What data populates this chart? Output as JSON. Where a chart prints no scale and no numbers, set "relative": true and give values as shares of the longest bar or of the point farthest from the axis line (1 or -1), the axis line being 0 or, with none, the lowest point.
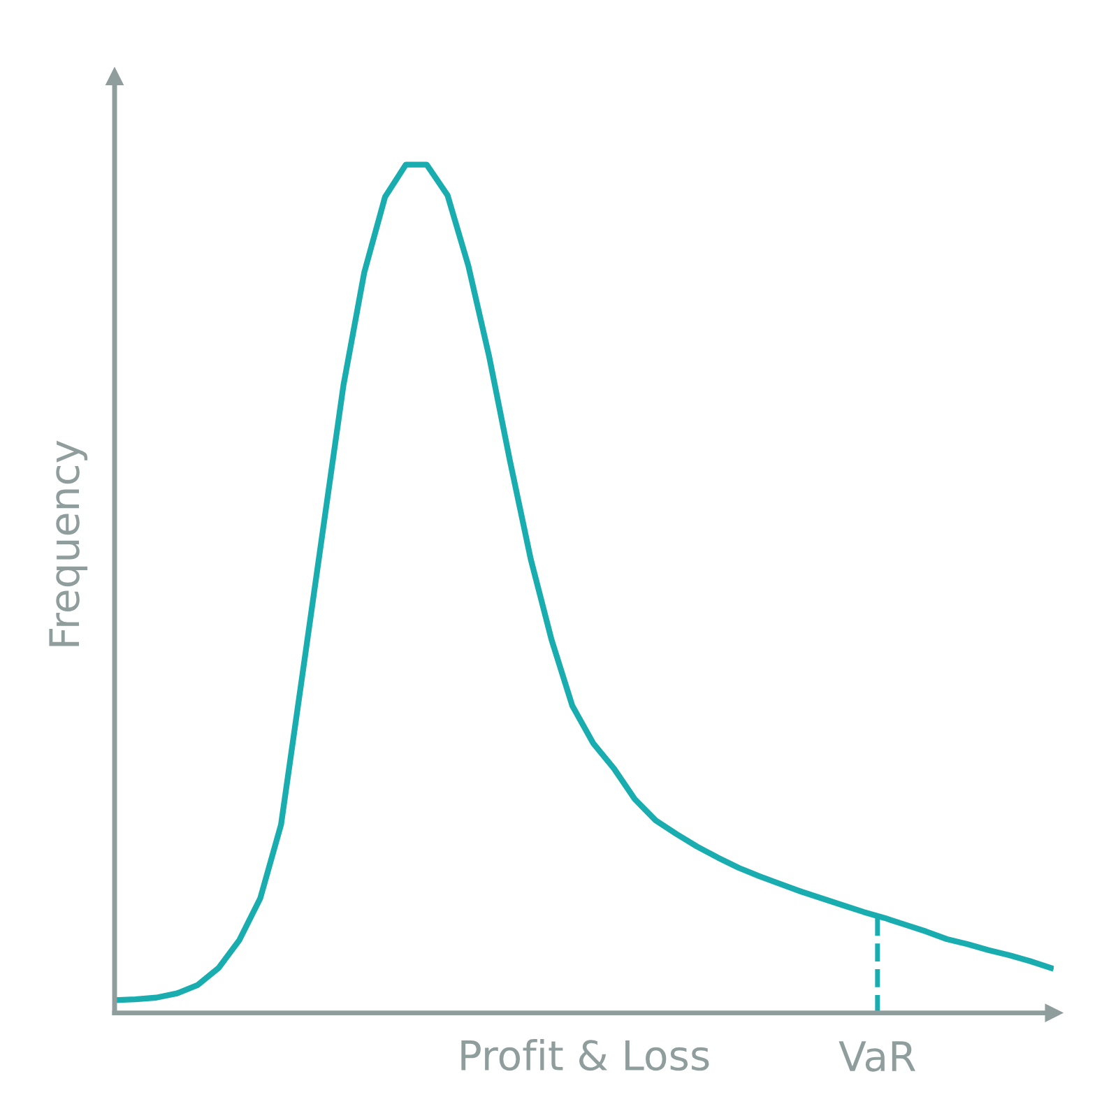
{
  "chart_data": {
    "type": "line",
    "relative": true,
    "xlabel": "Profit & Loss",
    "ylabel": "Frequency",
    "categories": [
      null,
      null,
      null,
      null,
      null,
      null,
      null,
      null,
      null,
      null,
      null,
      null,
      null,
      null,
      null,
      null,
      null,
      null,
      null,
      null,
      null,
      null,
      null,
      null,
      null,
      null,
      null,
      null,
      null,
      null,
      null,
      null,
      null,
      null,
      null,
      null,
      null,
      null,
      null,
      null,
      null,
      null,
      null,
      null,
      null,
      null
    ],
    "series": [
      {
        "color": "#1aadb0",
        "values": [
          0.015,
          0.016,
          0.018,
          0.023,
          0.033,
          0.053,
          0.086,
          0.135,
          0.222,
          0.394,
          0.567,
          0.74,
          0.873,
          0.962,
          1,
          1,
          0.964,
          0.881,
          0.774,
          0.651,
          0.535,
          0.44,
          0.362,
          0.318,
          0.288,
          0.252,
          0.227,
          0.211,
          0.196,
          0.183,
          0.171,
          0.161,
          0.152,
          0.143,
          0.135,
          0.127,
          0.119,
          0.112,
          0.104,
          0.096,
          0.087,
          0.081,
          0.074,
          0.068,
          0.061,
          0.053
        ]
      }
    ],
    "annotations": [
      "VaR"
    ]
  }
}
